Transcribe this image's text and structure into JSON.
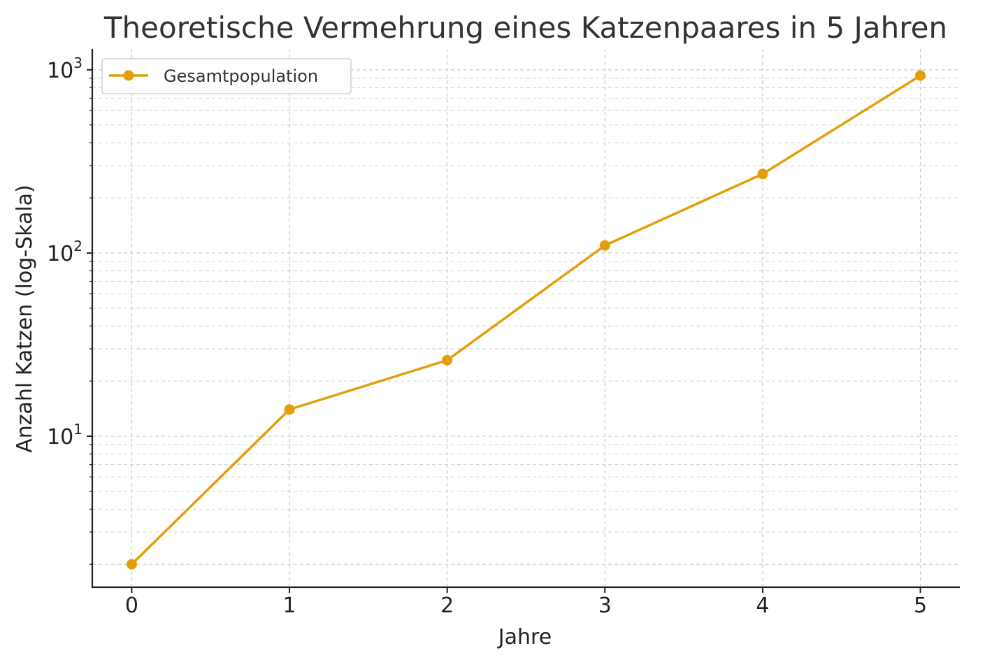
{
  "chart_data": {
    "type": "line",
    "title": "Theoretische Vermehrung eines Katzenpaares in 5 Jahren",
    "xlabel": "Jahre",
    "ylabel": "Anzahl Katzen (log-Skala)",
    "x": [
      0,
      1,
      2,
      3,
      4,
      5
    ],
    "xticks": [
      "0",
      "1",
      "2",
      "3",
      "4",
      "5"
    ],
    "xlim": [
      -0.25,
      5.25
    ],
    "yscale": "log",
    "ylim": [
      1.5,
      1300
    ],
    "yticks": [
      {
        "value": 10,
        "base": "10",
        "exp": "1"
      },
      {
        "value": 100,
        "base": "10",
        "exp": "2"
      },
      {
        "value": 1000,
        "base": "10",
        "exp": "3"
      }
    ],
    "series": [
      {
        "name": "Gesamtpopulation",
        "values": [
          2,
          14,
          26,
          110,
          270,
          930
        ]
      }
    ],
    "grid": true,
    "legend_position": "top-left",
    "colors": {
      "series": "#E39F0A",
      "grid": "#CCCCCC",
      "axis": "#222222"
    }
  }
}
